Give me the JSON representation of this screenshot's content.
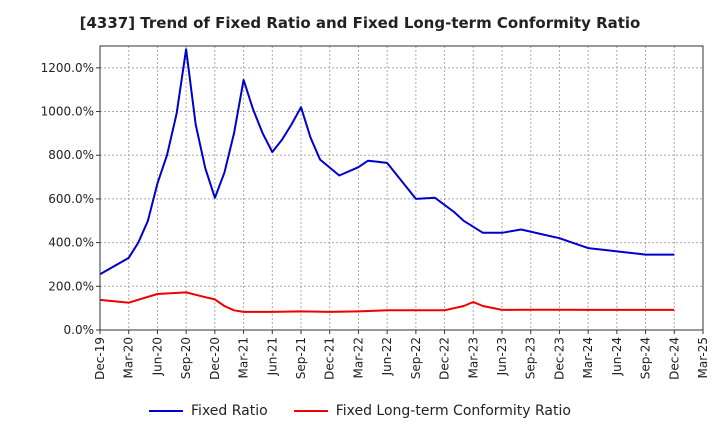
{
  "chart_data": {
    "type": "line",
    "title": "[4337]  Trend of Fixed Ratio and Fixed Long-term Conformity Ratio",
    "xlabel": "",
    "ylabel": "",
    "ylim": [
      0,
      1300
    ],
    "ytick_values": [
      0,
      200,
      400,
      600,
      800,
      1000,
      1200
    ],
    "ytick_labels": [
      "0.0%",
      "200.0%",
      "400.0%",
      "600.0%",
      "800.0%",
      "1000.0%",
      "1200.0%"
    ],
    "x_ticks": [
      "Dec-19",
      "Mar-20",
      "Jun-20",
      "Sep-20",
      "Dec-20",
      "Mar-21",
      "Jun-21",
      "Sep-21",
      "Dec-21",
      "Mar-22",
      "Jun-22",
      "Sep-22",
      "Dec-22",
      "Mar-23",
      "Jun-23",
      "Sep-23",
      "Dec-23",
      "Mar-24",
      "Jun-24",
      "Sep-24",
      "Dec-24",
      "Mar-25"
    ],
    "x_range": [
      0,
      63
    ],
    "grid": true,
    "legend_position": "bottom",
    "series": [
      {
        "name": "Fixed Ratio",
        "color": "#0000cc",
        "x": [
          0,
          3,
          4,
          5,
          6,
          7,
          8,
          9,
          10,
          11,
          12,
          13,
          14,
          15,
          16,
          17,
          18,
          19,
          20,
          21,
          22,
          23,
          25,
          27,
          28,
          29,
          30,
          33,
          35,
          37,
          38,
          40,
          42,
          44,
          46,
          48,
          50,
          51,
          53,
          54,
          56,
          57,
          60
        ],
        "y": [
          255,
          330,
          400,
          500,
          670,
          800,
          990,
          1285,
          940,
          740,
          605,
          720,
          900,
          1145,
          1010,
          900,
          815,
          870,
          940,
          1020,
          880,
          780,
          707,
          745,
          775,
          770,
          765,
          600,
          605,
          540,
          500,
          445,
          445,
          460,
          440,
          420,
          390,
          375,
          365,
          360,
          350,
          345,
          345
        ]
      },
      {
        "name": "Fixed Long-term Conformity Ratio",
        "color": "#ee0000",
        "x": [
          0,
          3,
          6,
          9,
          11,
          12,
          13,
          14,
          15,
          18,
          21,
          24,
          27,
          30,
          33,
          36,
          38,
          39,
          40,
          42,
          45,
          48,
          51,
          54,
          56,
          57,
          60
        ],
        "y": [
          138,
          125,
          165,
          172,
          150,
          140,
          110,
          90,
          83,
          83,
          85,
          83,
          85,
          90,
          90,
          90,
          110,
          128,
          110,
          92,
          93,
          93,
          92,
          92,
          92,
          92,
          92
        ]
      }
    ]
  }
}
